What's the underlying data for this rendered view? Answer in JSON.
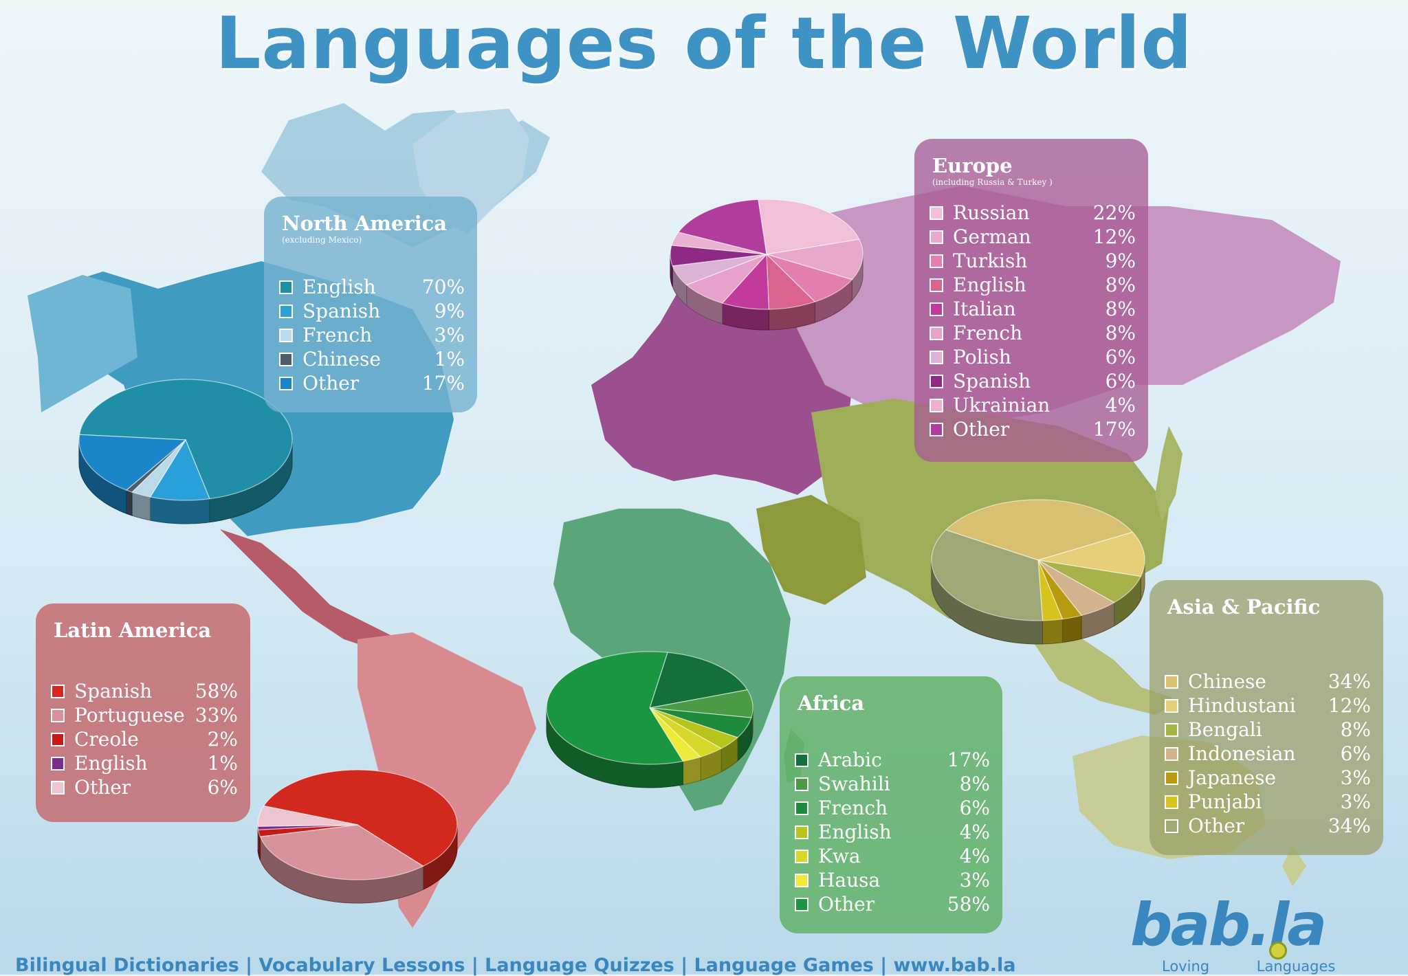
{
  "title": "Languages of the World",
  "footer": "Bilingual Dictionaries | Vocabulary Lessons | Language Quizzes | Language Games | www.bab.la",
  "logo": {
    "wordmark": "bab.la",
    "tagline": "Loving Languages"
  },
  "chart_data": [
    {
      "type": "pie",
      "title": "North America",
      "subtitle": "(excluding Mexico)",
      "categories": [
        "English",
        "Spanish",
        "French",
        "Chinese",
        "Other"
      ],
      "values": [
        70,
        9,
        3,
        1,
        17
      ],
      "value_labels": [
        "70%",
        "9%",
        "3%",
        "1%",
        "17%"
      ],
      "colors": [
        "#1e8fa6",
        "#2a9fd8",
        "#b9d9e8",
        "#4d5e6a",
        "#1a86c9"
      ]
    },
    {
      "type": "pie",
      "title": "Europe",
      "subtitle": "(including Russia & Turkey )",
      "categories": [
        "Russian",
        "German",
        "Turkish",
        "English",
        "Italian",
        "French",
        "Polish",
        "Spanish",
        "Ukrainian",
        "Other"
      ],
      "values": [
        22,
        12,
        9,
        8,
        8,
        8,
        6,
        6,
        4,
        17
      ],
      "value_labels": [
        "22%",
        "12%",
        "9%",
        "8%",
        "8%",
        "8%",
        "6%",
        "6%",
        "4%",
        "17%"
      ],
      "colors": [
        "#f1bfd8",
        "#e8a8cc",
        "#e27fae",
        "#d9628e",
        "#c23a9a",
        "#e6a2c8",
        "#dcb3d4",
        "#8e2a86",
        "#eab2d0",
        "#b03c9c"
      ]
    },
    {
      "type": "pie",
      "title": "Latin America",
      "categories": [
        "Spanish",
        "Portuguese",
        "Creole",
        "English",
        "Other"
      ],
      "values": [
        58,
        33,
        2,
        1,
        6
      ],
      "value_labels": [
        "58%",
        "33%",
        "2%",
        "1%",
        "6%"
      ],
      "colors": [
        "#d2281e",
        "#d8939a",
        "#c81818",
        "#7a2c8a",
        "#eec4d0"
      ]
    },
    {
      "type": "pie",
      "title": "Africa",
      "categories": [
        "Arabic",
        "Swahili",
        "French",
        "English",
        "Kwa",
        "Hausa",
        "Other"
      ],
      "values": [
        17,
        8,
        6,
        4,
        4,
        3,
        58
      ],
      "value_labels": [
        "17%",
        "8%",
        "6%",
        "4%",
        "4%",
        "3%",
        "58%"
      ],
      "colors": [
        "#13703a",
        "#4a9a46",
        "#1e8a3c",
        "#b7c41c",
        "#d7d82a",
        "#eeea3a",
        "#1b9640"
      ]
    },
    {
      "type": "pie",
      "title": "Asia & Pacific",
      "categories": [
        "Chinese",
        "Hindustani",
        "Bengali",
        "Indonesian",
        "Japanese",
        "Punjabi",
        "Other"
      ],
      "values": [
        34,
        12,
        8,
        6,
        3,
        3,
        34
      ],
      "value_labels": [
        "34%",
        "12%",
        "8%",
        "6%",
        "3%",
        "3%",
        "34%"
      ],
      "colors": [
        "#d8c070",
        "#e6cf78",
        "#a8b24a",
        "#d2b38e",
        "#b89a10",
        "#d8c21e",
        "#9ea874"
      ]
    }
  ]
}
